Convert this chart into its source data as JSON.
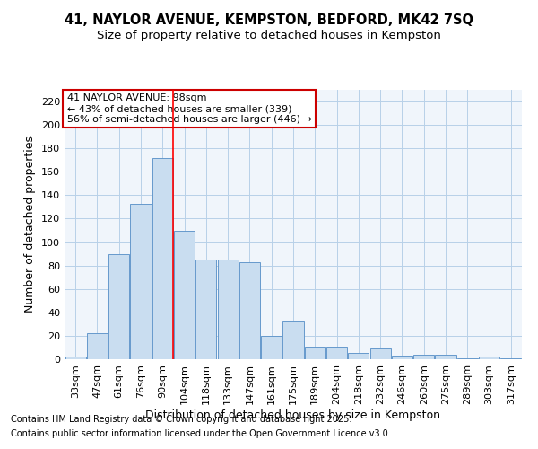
{
  "title_line1": "41, NAYLOR AVENUE, KEMPSTON, BEDFORD, MK42 7SQ",
  "title_line2": "Size of property relative to detached houses in Kempston",
  "xlabel": "Distribution of detached houses by size in Kempston",
  "ylabel": "Number of detached properties",
  "categories": [
    "33sqm",
    "47sqm",
    "61sqm",
    "76sqm",
    "90sqm",
    "104sqm",
    "118sqm",
    "133sqm",
    "147sqm",
    "161sqm",
    "175sqm",
    "189sqm",
    "204sqm",
    "218sqm",
    "232sqm",
    "246sqm",
    "260sqm",
    "275sqm",
    "289sqm",
    "303sqm",
    "317sqm"
  ],
  "values": [
    2,
    22,
    90,
    133,
    172,
    110,
    85,
    85,
    83,
    20,
    32,
    11,
    11,
    5,
    9,
    3,
    4,
    4,
    1,
    2,
    1
  ],
  "bar_color": "#c9ddf0",
  "bar_edge_color": "#6699cc",
  "grid_color": "#b8d0e8",
  "redline_index": 4,
  "annotation_line1": "41 NAYLOR AVENUE: 98sqm",
  "annotation_line2": "← 43% of detached houses are smaller (339)",
  "annotation_line3": "56% of semi-detached houses are larger (446) →",
  "annotation_box_color": "#ffffff",
  "annotation_box_edge": "#cc0000",
  "footer_line1": "Contains HM Land Registry data © Crown copyright and database right 2025.",
  "footer_line2": "Contains public sector information licensed under the Open Government Licence v3.0.",
  "ylim": [
    0,
    230
  ],
  "yticks": [
    0,
    20,
    40,
    60,
    80,
    100,
    120,
    140,
    160,
    180,
    200,
    220
  ],
  "bg_color": "#ffffff",
  "plot_bg_color": "#f0f5fb",
  "title_fontsize": 10.5,
  "subtitle_fontsize": 9.5,
  "axis_label_fontsize": 9,
  "tick_fontsize": 8,
  "annotation_fontsize": 8,
  "footer_fontsize": 7
}
